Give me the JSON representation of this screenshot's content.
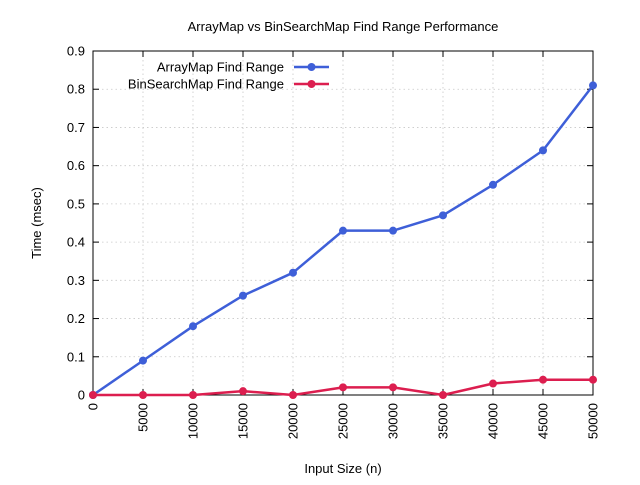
{
  "chart_data": {
    "type": "line",
    "title": "ArrayMap vs BinSearchMap Find Range Performance",
    "xlabel": "Input Size (n)",
    "ylabel": "Time (msec)",
    "xlim": [
      0,
      50000
    ],
    "ylim": [
      0,
      0.9
    ],
    "x_ticks": [
      "0",
      "5000",
      "10000",
      "15000",
      "20000",
      "25000",
      "30000",
      "35000",
      "40000",
      "45000",
      "50000"
    ],
    "y_ticks": [
      "0",
      "0.1",
      "0.2",
      "0.3",
      "0.4",
      "0.5",
      "0.6",
      "0.7",
      "0.8",
      "0.9"
    ],
    "grid": true,
    "legend_position": "top-left",
    "x": [
      0,
      5000,
      10000,
      15000,
      20000,
      25000,
      30000,
      35000,
      40000,
      45000,
      50000
    ],
    "series": [
      {
        "name": "ArrayMap Find Range",
        "color": "#3e5fd8",
        "values": [
          0,
          0.09,
          0.18,
          0.26,
          0.32,
          0.43,
          0.43,
          0.47,
          0.55,
          0.64,
          0.81
        ]
      },
      {
        "name": "BinSearchMap Find Range",
        "color": "#dc1e4f",
        "values": [
          0,
          0,
          0,
          0.01,
          0,
          0.02,
          0.02,
          0,
          0.03,
          0.04,
          0.04
        ]
      }
    ]
  }
}
